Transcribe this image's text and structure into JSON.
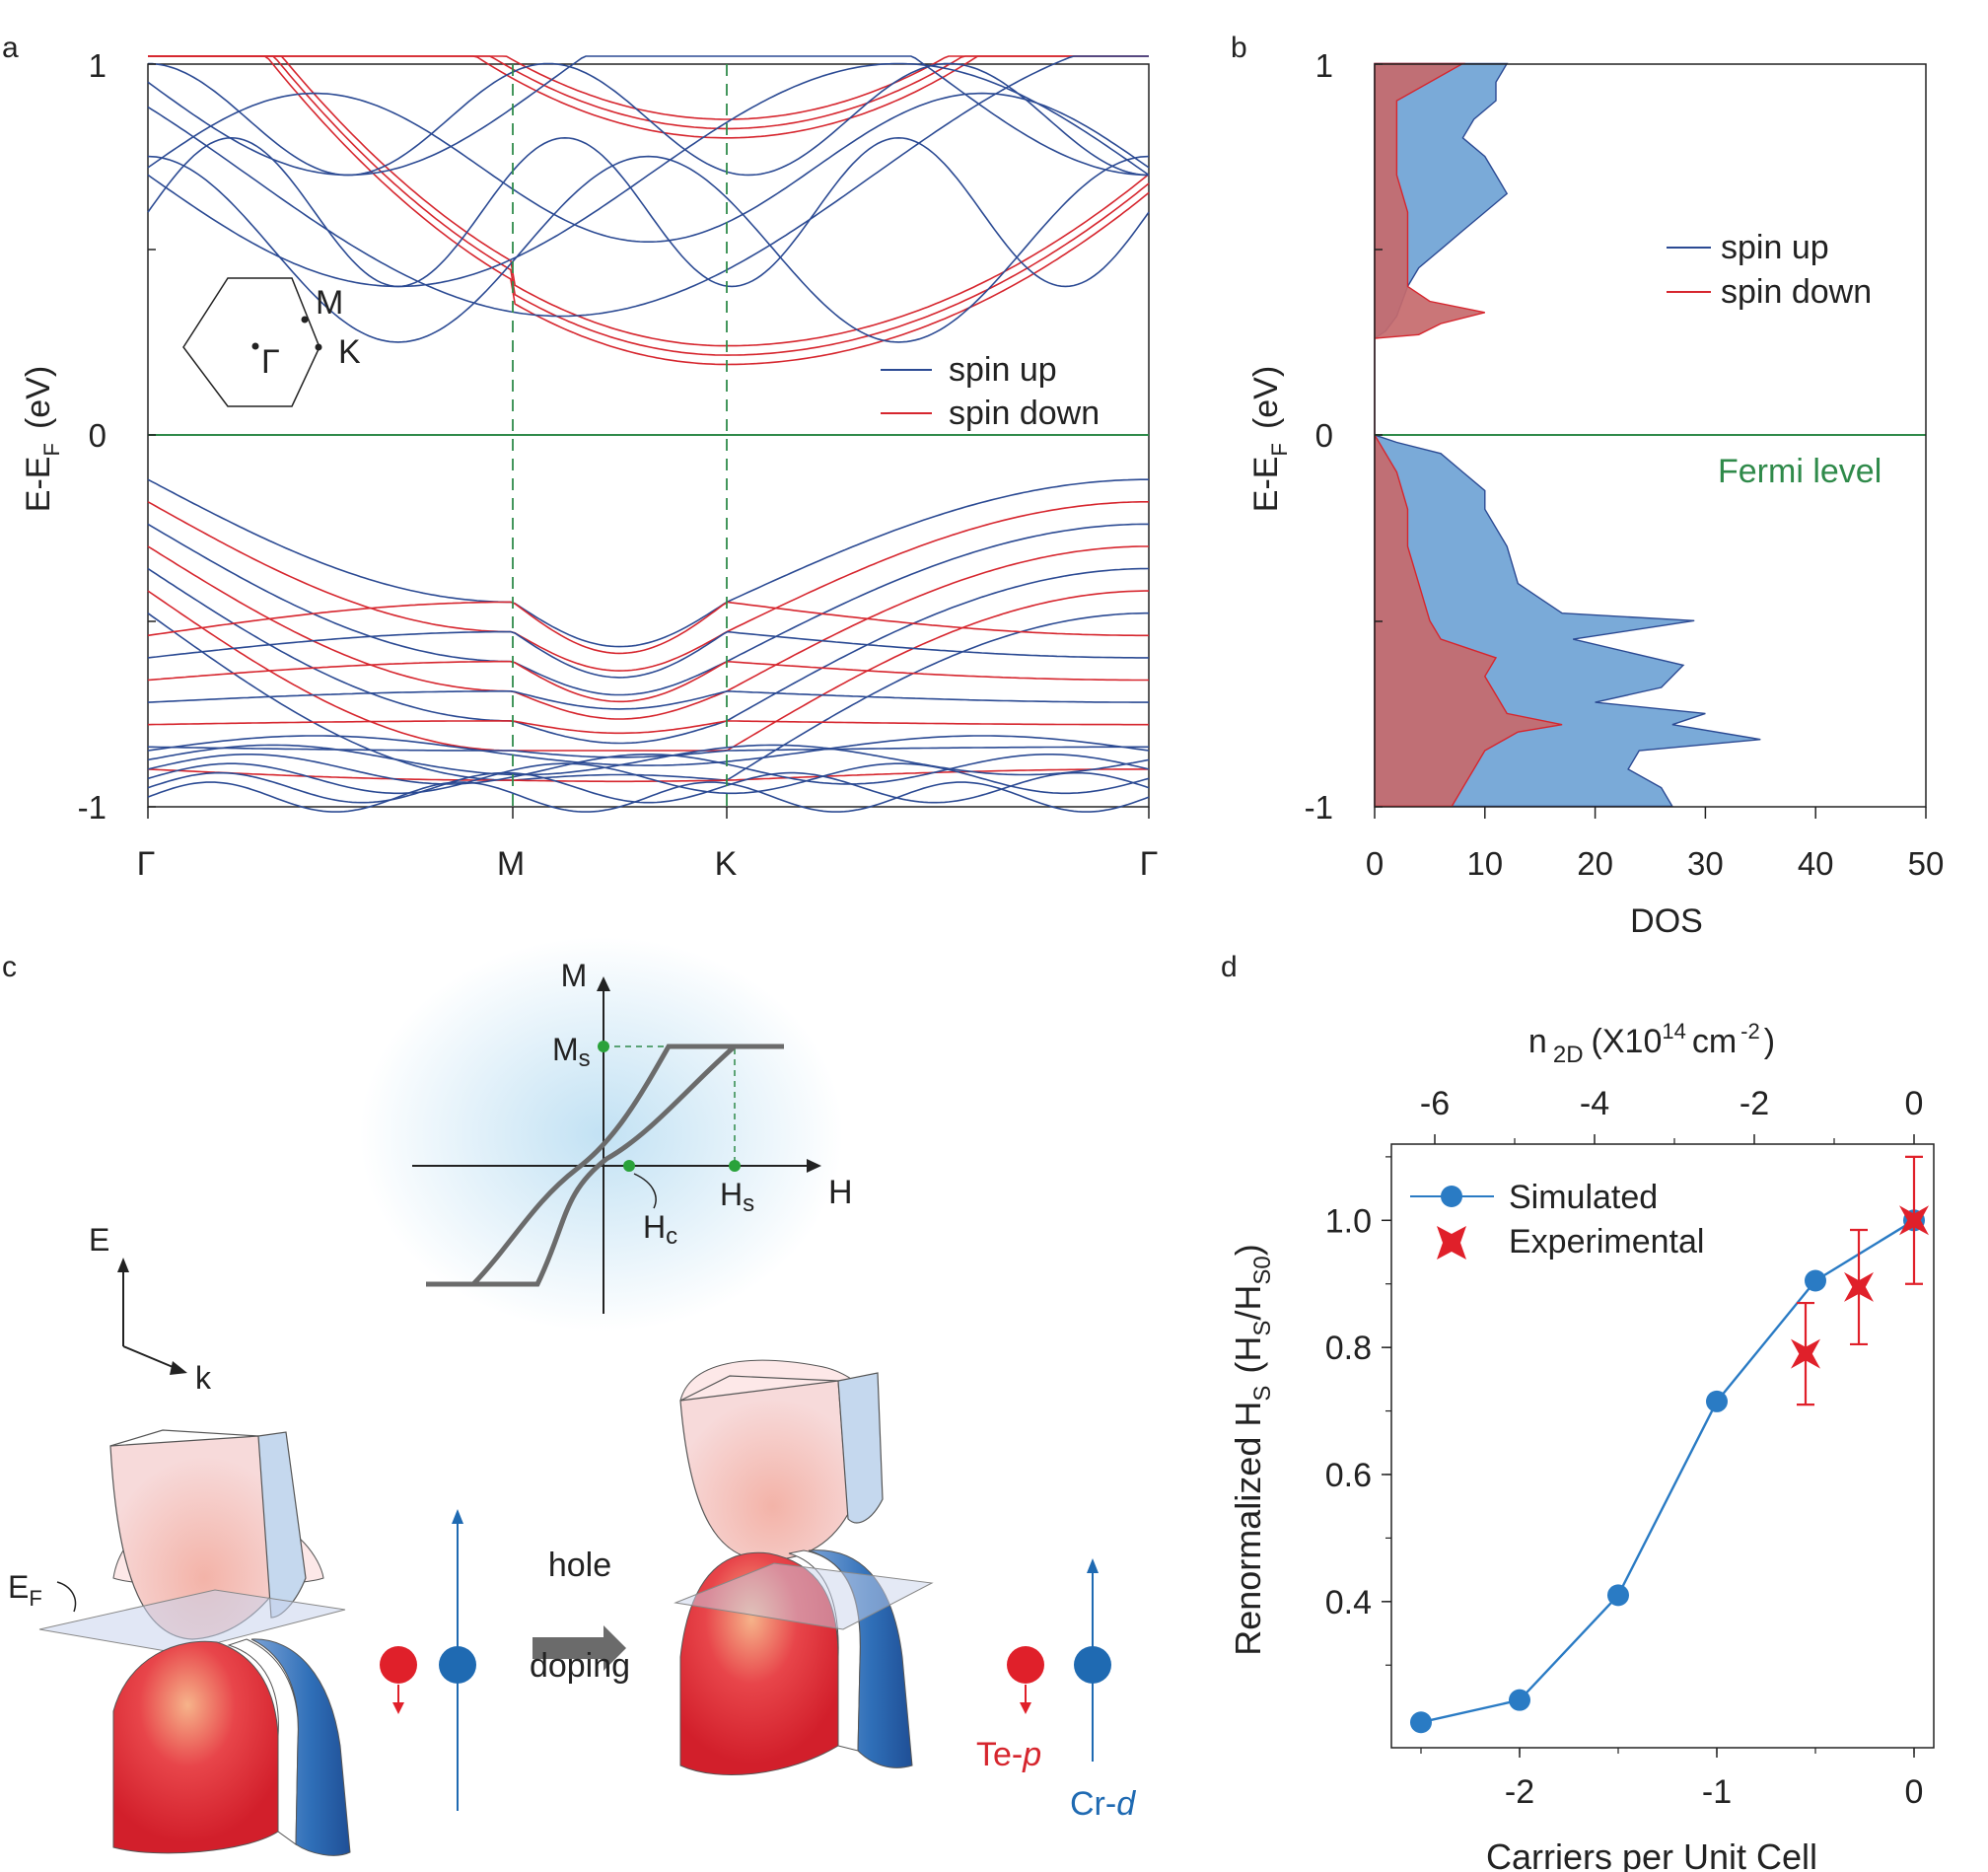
{
  "panel_labels": [
    "a",
    "b",
    "c",
    "d"
  ],
  "colors": {
    "spin_up": "#2b4a93",
    "spin_down": "#d6262e",
    "fermi": "#2f8a4a",
    "dos_up_fill": "#7aaad8",
    "dos_down_fill": "#c66a6c",
    "sim": "#2a7bc4",
    "exp": "#e0202a",
    "hyst": "#6b6b6b"
  },
  "chart_data": [
    {
      "panel": "a",
      "type": "line",
      "ylabel": "E-E",
      "ylabel_sub": "F",
      "ylabel_unit": "(eV)",
      "ylim": [
        -1,
        1
      ],
      "y_ticks": [
        "1",
        "0",
        "-1"
      ],
      "x_ticks": [
        "Γ",
        "M",
        "K",
        "Γ"
      ],
      "series": [
        {
          "name": "spin up",
          "color": "#2b4a93"
        },
        {
          "name": "spin down",
          "color": "#d6262e"
        }
      ],
      "fermi_level": 0,
      "inset_labels": [
        "M",
        "K",
        "Γ"
      ]
    },
    {
      "panel": "b",
      "type": "area",
      "xlabel": "DOS",
      "ylabel": "E-E",
      "ylabel_sub": "F",
      "ylabel_unit": "(eV)",
      "xlim": [
        0,
        50
      ],
      "ylim": [
        -1,
        1
      ],
      "x_ticks": [
        "0",
        "10",
        "20",
        "30",
        "40",
        "50"
      ],
      "y_ticks": [
        "1",
        "0",
        "-1"
      ],
      "series": [
        {
          "name": "spin up",
          "points": [
            [
              -1,
              27
            ],
            [
              -0.95,
              26
            ],
            [
              -0.9,
              23
            ],
            [
              -0.85,
              24
            ],
            [
              -0.82,
              35
            ],
            [
              -0.78,
              27
            ],
            [
              -0.75,
              30
            ],
            [
              -0.72,
              20
            ],
            [
              -0.68,
              26
            ],
            [
              -0.62,
              28
            ],
            [
              -0.55,
              18
            ],
            [
              -0.5,
              29
            ],
            [
              -0.48,
              17
            ],
            [
              -0.44,
              15
            ],
            [
              -0.4,
              13
            ],
            [
              -0.3,
              12
            ],
            [
              -0.2,
              10
            ],
            [
              -0.15,
              10
            ],
            [
              -0.1,
              8
            ],
            [
              -0.05,
              6
            ],
            [
              -0.02,
              2
            ],
            [
              0,
              0
            ],
            [
              0.26,
              0
            ],
            [
              0.28,
              1
            ],
            [
              0.32,
              2
            ],
            [
              0.4,
              3
            ],
            [
              0.45,
              4
            ],
            [
              0.5,
              6
            ],
            [
              0.55,
              8
            ],
            [
              0.6,
              10
            ],
            [
              0.65,
              12
            ],
            [
              0.7,
              11
            ],
            [
              0.75,
              10
            ],
            [
              0.8,
              8
            ],
            [
              0.85,
              9
            ],
            [
              0.9,
              11
            ],
            [
              0.95,
              11
            ],
            [
              1,
              12
            ]
          ]
        },
        {
          "name": "spin down",
          "points": [
            [
              -1,
              7
            ],
            [
              -0.95,
              8
            ],
            [
              -0.9,
              9
            ],
            [
              -0.85,
              10
            ],
            [
              -0.8,
              13
            ],
            [
              -0.78,
              17
            ],
            [
              -0.75,
              12
            ],
            [
              -0.7,
              11
            ],
            [
              -0.65,
              10
            ],
            [
              -0.6,
              11
            ],
            [
              -0.55,
              6
            ],
            [
              -0.5,
              5
            ],
            [
              -0.4,
              4
            ],
            [
              -0.3,
              3
            ],
            [
              -0.2,
              3
            ],
            [
              -0.1,
              2
            ],
            [
              -0.05,
              1
            ],
            [
              0,
              0
            ],
            [
              0.26,
              0
            ],
            [
              0.27,
              4
            ],
            [
              0.3,
              6
            ],
            [
              0.33,
              10
            ],
            [
              0.36,
              5
            ],
            [
              0.4,
              3
            ],
            [
              0.5,
              3
            ],
            [
              0.55,
              3
            ],
            [
              0.6,
              3
            ],
            [
              0.7,
              2
            ],
            [
              0.8,
              2
            ],
            [
              0.9,
              2
            ],
            [
              1,
              8
            ]
          ]
        }
      ],
      "fermi_label": "Fermi level"
    },
    {
      "panel": "c",
      "type": "schematic",
      "hyst_labels": {
        "M": "M",
        "Ms": "M",
        "Ms_sub": "s",
        "H": "H",
        "Hs": "H",
        "Hs_sub": "s",
        "Hc": "H",
        "Hc_sub": "c"
      },
      "axis_labels": {
        "E": "E",
        "k": "k",
        "EF": "E",
        "EF_sub": "F"
      },
      "arrow_label_1": "hole",
      "arrow_label_2": "doping",
      "orbital_te": "Te-",
      "orbital_te_italic": "p",
      "orbital_cr": "Cr-",
      "orbital_cr_italic": "d"
    },
    {
      "panel": "d",
      "type": "scatter",
      "xlabel": "Carriers per Unit Cell",
      "ylabel": "Renormalized H",
      "ylabel_sub": "S",
      "ylabel_paren": "(H",
      "ylabel_paren_sub1": "S",
      "ylabel_paren_mid": "/H",
      "ylabel_paren_sub2": "S0",
      "ylabel_paren_end": ")",
      "top_xlabel": {
        "n": "n",
        "n_sub": "2D",
        "unit": "(X10",
        "unit_sup": "14",
        "unit2": "cm",
        "unit2_sup": "-2",
        "unit_end": ")"
      },
      "xlim": [
        -2.65,
        0.1
      ],
      "ylim": [
        0.17,
        1.12
      ],
      "x_ticks": [
        "-2",
        "-1",
        "0"
      ],
      "x_tick_values": [
        -2,
        -1,
        0
      ],
      "y_ticks": [
        "0.4",
        "0.6",
        "0.8",
        "1.0"
      ],
      "y_tick_values": [
        0.4,
        0.6,
        0.8,
        1.0
      ],
      "top_ticks": [
        "-6",
        "-4",
        "-2",
        "0"
      ],
      "top_tick_values": [
        -6,
        -4,
        -2,
        0
      ],
      "series": [
        {
          "name": "Simulated",
          "x": [
            -2.5,
            -2.0,
            -1.5,
            -1.0,
            -0.5,
            0.0
          ],
          "y": [
            0.21,
            0.245,
            0.41,
            0.715,
            0.905,
            1.0
          ]
        },
        {
          "name": "Experimental",
          "x": [
            -0.55,
            -0.28,
            0.0
          ],
          "y": [
            0.79,
            0.895,
            1.0
          ],
          "err": [
            0.08,
            0.09,
            0.1
          ]
        }
      ]
    }
  ]
}
